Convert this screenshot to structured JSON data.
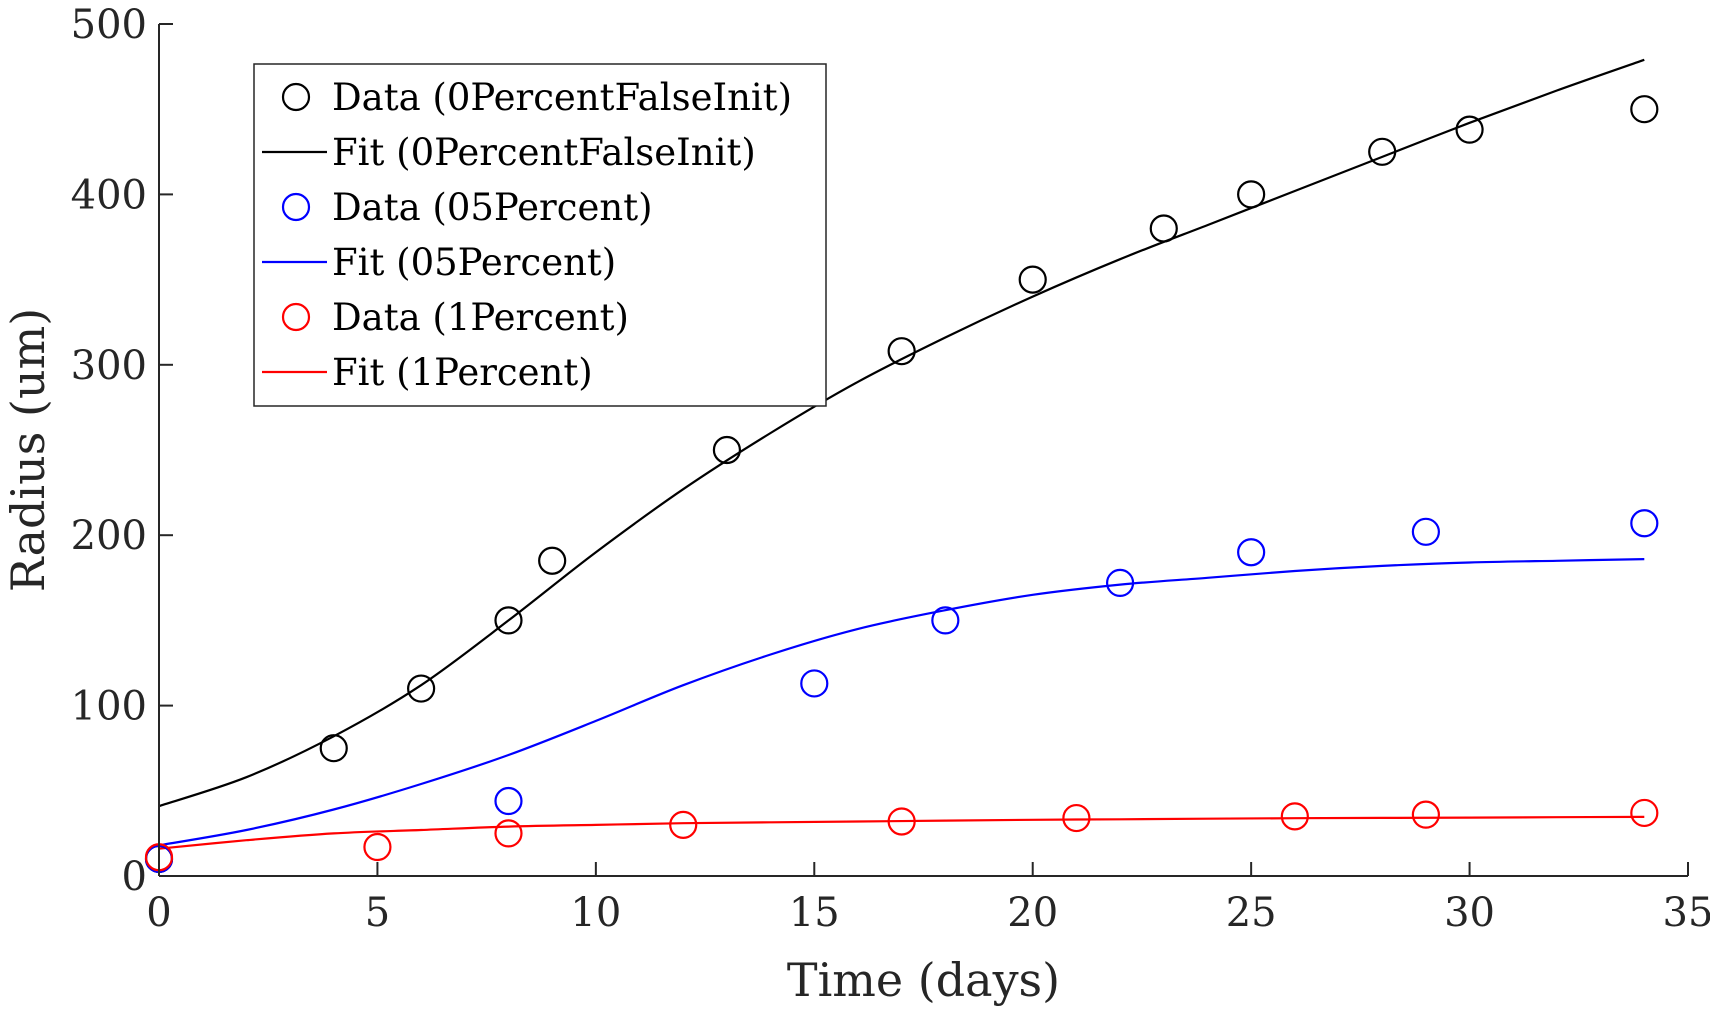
{
  "chart_data": {
    "type": "scatter",
    "xlabel": "Time (days)",
    "ylabel": "Radius (um)",
    "xlim": [
      0,
      35
    ],
    "ylim": [
      0,
      500
    ],
    "xticks": [
      0,
      5,
      10,
      15,
      20,
      25,
      30,
      35
    ],
    "yticks": [
      0,
      100,
      200,
      300,
      400,
      500
    ],
    "xtick_labels": [
      "0",
      "5",
      "10",
      "15",
      "20",
      "25",
      "30",
      "35"
    ],
    "ytick_labels": [
      "0",
      "100",
      "200",
      "300",
      "400",
      "500"
    ],
    "grid": false,
    "legend_position": "top-left",
    "series": [
      {
        "name": "Data (0PercentFalseInit)",
        "kind": "marker",
        "color": "#000000",
        "x": [
          0,
          4,
          6,
          8,
          9,
          13,
          17,
          20,
          23,
          25,
          28,
          30,
          34
        ],
        "y": [
          10,
          75,
          110,
          150,
          185,
          250,
          308,
          350,
          380,
          400,
          425,
          438,
          450
        ]
      },
      {
        "name": "Fit (0PercentFalseInit)",
        "kind": "line",
        "color": "#000000",
        "x": [
          0,
          2,
          4,
          6,
          8,
          10,
          12,
          14,
          16,
          18,
          20,
          22,
          24,
          26,
          28,
          30,
          32,
          34
        ],
        "y": [
          41,
          58,
          82,
          112,
          150,
          190,
          227,
          260,
          290,
          316,
          340,
          362,
          382,
          402,
          422,
          442,
          461,
          479
        ]
      },
      {
        "name": "Data (05Percent)",
        "kind": "marker",
        "color": "#0000ff",
        "x": [
          0,
          8,
          15,
          18,
          22,
          25,
          29,
          34
        ],
        "y": [
          10,
          44,
          113,
          150,
          172,
          190,
          202,
          207
        ]
      },
      {
        "name": "Fit (05Percent)",
        "kind": "line",
        "color": "#0000ff",
        "x": [
          0,
          2,
          4,
          6,
          8,
          10,
          12,
          14,
          16,
          18,
          20,
          22,
          24,
          26,
          28,
          30,
          32,
          34
        ],
        "y": [
          18,
          27,
          39,
          54,
          71,
          91,
          112,
          130,
          145,
          156,
          165,
          171,
          175,
          179,
          182,
          184,
          185,
          186
        ]
      },
      {
        "name": "Data (1Percent)",
        "kind": "marker",
        "color": "#ff0000",
        "x": [
          0,
          5,
          8,
          12,
          17,
          21,
          26,
          29,
          34
        ],
        "y": [
          11,
          17,
          25,
          30,
          32,
          34,
          35,
          36,
          37
        ]
      },
      {
        "name": "Fit (1Percent)",
        "kind": "line",
        "color": "#ff0000",
        "x": [
          0,
          2,
          4,
          6,
          8,
          10,
          12,
          14,
          16,
          18,
          20,
          22,
          24,
          26,
          28,
          30,
          32,
          34
        ],
        "y": [
          16,
          21,
          25,
          27,
          29,
          30,
          31,
          31.5,
          32,
          32.5,
          33,
          33.3,
          33.6,
          33.9,
          34.1,
          34.3,
          34.5,
          34.7
        ]
      }
    ]
  }
}
